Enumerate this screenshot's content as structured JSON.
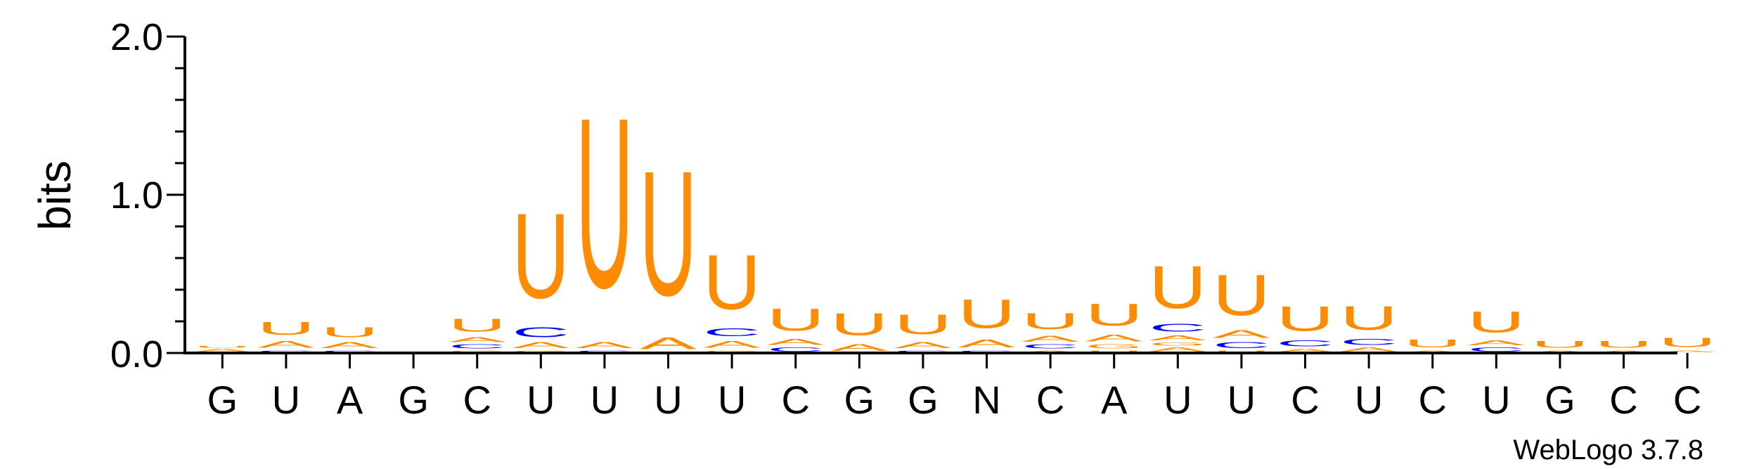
{
  "colors": {
    "A": "#FF8C00",
    "U": "#FF8C00",
    "C": "#0000FF",
    "G": "#FF8C00",
    "axis": "#000000"
  },
  "chart_data": {
    "type": "sequence-logo",
    "ylabel": "bits",
    "ylim": [
      0,
      2.0
    ],
    "yticks": [
      "0.0",
      "1.0",
      "2.0"
    ],
    "credit": "WebLogo 3.7.8",
    "consensus": [
      "G",
      "U",
      "A",
      "G",
      "C",
      "U",
      "U",
      "U",
      "U",
      "C",
      "G",
      "G",
      "N",
      "C",
      "A",
      "U",
      "U",
      "C",
      "U",
      "C",
      "U",
      "G",
      "C",
      "C"
    ],
    "columns": [
      {
        "stack": [
          {
            "l": "A",
            "h": 0.03
          },
          {
            "l": "U",
            "h": 0.02
          }
        ]
      },
      {
        "stack": [
          {
            "l": "C",
            "h": 0.02
          },
          {
            "l": "A",
            "h": 0.07
          },
          {
            "l": "U",
            "h": 0.13
          }
        ]
      },
      {
        "stack": [
          {
            "l": "C",
            "h": 0.02
          },
          {
            "l": "A",
            "h": 0.06
          },
          {
            "l": "U",
            "h": 0.1
          }
        ]
      },
      {
        "stack": []
      },
      {
        "stack": [
          {
            "l": "G",
            "h": 0.02
          },
          {
            "l": "C",
            "h": 0.04
          },
          {
            "l": "A",
            "h": 0.05
          },
          {
            "l": "U",
            "h": 0.13
          }
        ]
      },
      {
        "stack": [
          {
            "l": "G",
            "h": 0.02
          },
          {
            "l": "A",
            "h": 0.06
          },
          {
            "l": "C",
            "h": 0.1
          },
          {
            "l": "U",
            "h": 0.86
          }
        ]
      },
      {
        "stack": [
          {
            "l": "C",
            "h": 0.02
          },
          {
            "l": "A",
            "h": 0.06
          },
          {
            "l": "U",
            "h": 1.72
          }
        ]
      },
      {
        "stack": [
          {
            "l": "A",
            "h": 0.12
          },
          {
            "l": "U",
            "h": 1.26
          }
        ]
      },
      {
        "stack": [
          {
            "l": "G",
            "h": 0.02
          },
          {
            "l": "A",
            "h": 0.07
          },
          {
            "l": "C",
            "h": 0.08
          },
          {
            "l": "U",
            "h": 0.55
          }
        ]
      },
      {
        "stack": [
          {
            "l": "C",
            "h": 0.04
          },
          {
            "l": "A",
            "h": 0.06
          },
          {
            "l": "U",
            "h": 0.22
          }
        ]
      },
      {
        "stack": [
          {
            "l": "A",
            "h": 0.07
          },
          {
            "l": "U",
            "h": 0.22
          }
        ]
      },
      {
        "stack": [
          {
            "l": "C",
            "h": 0.02
          },
          {
            "l": "A",
            "h": 0.06
          },
          {
            "l": "U",
            "h": 0.2
          }
        ]
      },
      {
        "stack": [
          {
            "l": "C",
            "h": 0.02
          },
          {
            "l": "A",
            "h": 0.08
          },
          {
            "l": "U",
            "h": 0.29
          }
        ]
      },
      {
        "stack": [
          {
            "l": "A",
            "h": 0.02
          },
          {
            "l": "C",
            "h": 0.04
          },
          {
            "l": "A",
            "h": 0.06
          },
          {
            "l": "U",
            "h": 0.16
          }
        ]
      },
      {
        "stack": [
          {
            "l": "U",
            "h": 0.02
          },
          {
            "l": "G",
            "h": 0.04
          },
          {
            "l": "A",
            "h": 0.07
          },
          {
            "l": "U",
            "h": 0.22
          }
        ]
      },
      {
        "stack": [
          {
            "l": "A",
            "h": 0.04
          },
          {
            "l": "G",
            "h": 0.03
          },
          {
            "l": "A",
            "h": 0.05
          },
          {
            "l": "C",
            "h": 0.08
          },
          {
            "l": "U",
            "h": 0.43
          }
        ]
      },
      {
        "stack": [
          {
            "l": "U",
            "h": 0.02
          },
          {
            "l": "C",
            "h": 0.06
          },
          {
            "l": "A",
            "h": 0.08
          },
          {
            "l": "U",
            "h": 0.41
          }
        ]
      },
      {
        "stack": [
          {
            "l": "A",
            "h": 0.03
          },
          {
            "l": "C",
            "h": 0.06
          },
          {
            "l": "U",
            "h": 0.25
          }
        ]
      },
      {
        "stack": [
          {
            "l": "A",
            "h": 0.04
          },
          {
            "l": "C",
            "h": 0.06
          },
          {
            "l": "U",
            "h": 0.24
          }
        ]
      },
      {
        "stack": [
          {
            "l": "A",
            "h": 0.02
          },
          {
            "l": "U",
            "h": 0.08
          }
        ]
      },
      {
        "stack": [
          {
            "l": "C",
            "h": 0.04
          },
          {
            "l": "A",
            "h": 0.05
          },
          {
            "l": "U",
            "h": 0.21
          }
        ]
      },
      {
        "stack": [
          {
            "l": "A",
            "h": 0.02
          },
          {
            "l": "U",
            "h": 0.07
          }
        ]
      },
      {
        "stack": [
          {
            "l": "A",
            "h": 0.02
          },
          {
            "l": "U",
            "h": 0.07
          }
        ]
      },
      {
        "stack": [
          {
            "l": "A",
            "h": 0.02
          },
          {
            "l": "U",
            "h": 0.09
          }
        ]
      }
    ]
  }
}
